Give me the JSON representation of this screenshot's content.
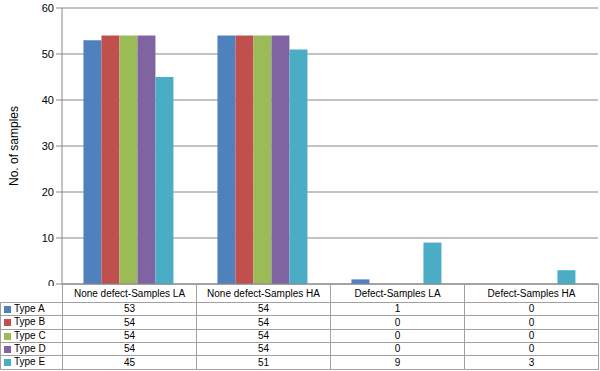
{
  "chart_data": {
    "type": "bar",
    "ylabel": "No. of samples",
    "categories": [
      "None defect-Samples LA",
      "None defect-Samples HA",
      "Defect-Samples LA",
      "Defect-Samples HA"
    ],
    "series": [
      {
        "name": "Type A",
        "color": "#4f81bd",
        "values": [
          53,
          54,
          1,
          0
        ]
      },
      {
        "name": "Type B",
        "color": "#c0504d",
        "values": [
          54,
          54,
          0,
          0
        ]
      },
      {
        "name": "Type C",
        "color": "#9bbb59",
        "values": [
          54,
          54,
          0,
          0
        ]
      },
      {
        "name": "Type D",
        "color": "#8064a2",
        "values": [
          54,
          54,
          0,
          0
        ]
      },
      {
        "name": "Type E",
        "color": "#4bacc6",
        "values": [
          45,
          51,
          9,
          3
        ]
      }
    ],
    "ylim": [
      0,
      60
    ],
    "yticks": [
      0,
      10,
      20,
      30,
      40,
      50,
      60
    ],
    "grid": true
  }
}
